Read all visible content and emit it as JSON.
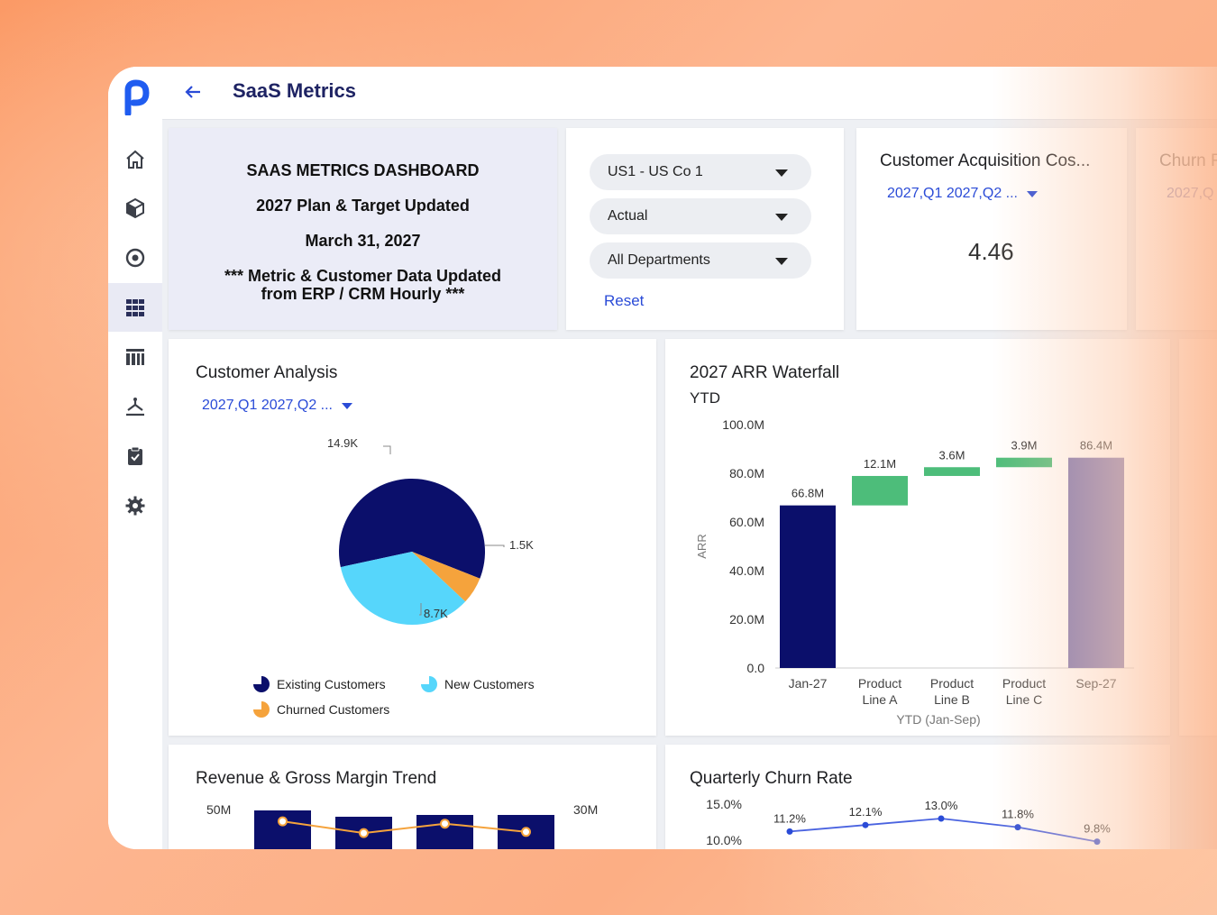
{
  "header": {
    "title": "SaaS Metrics"
  },
  "sidebar": {
    "items": [
      "home-icon",
      "cube-icon",
      "target-icon",
      "grid-icon",
      "building-icon",
      "hierarchy-icon",
      "clipboard-icon",
      "gear-icon"
    ],
    "active": 3
  },
  "banner": {
    "line1": "SAAS METRICS DASHBOARD",
    "line2": "2027 Plan & Target Updated",
    "line3": "March 31, 2027",
    "line4": "*** Metric & Customer Data Updated",
    "line5": "from ERP / CRM Hourly ***"
  },
  "filters": {
    "entity": "US1 - US Co 1",
    "scenario": "Actual",
    "department": "All Departments",
    "reset": "Reset"
  },
  "cac": {
    "title": "Customer Acquisition Cos...",
    "filter": "2027,Q1 2027,Q2 ...",
    "value": "4.46"
  },
  "churn_card": {
    "title": "Churn R",
    "filter": "2027,Q"
  },
  "customer_analysis": {
    "title": "Customer Analysis",
    "filter": "2027,Q1 2027,Q2 ...",
    "legend": [
      "Existing Customers",
      "New Customers",
      "Churned Customers"
    ],
    "chart_data": {
      "type": "pie",
      "labels": [
        "Existing Customers",
        "New Customers",
        "Churned Customers"
      ],
      "values": [
        14.9,
        8.7,
        1.5
      ],
      "value_labels": [
        "14.9K",
        "8.7K",
        "1.5K"
      ],
      "colors": [
        "#0b0f6b",
        "#56d6fb",
        "#f5a33c"
      ]
    }
  },
  "arr": {
    "title": "2027 ARR Waterfall",
    "subtitle": "YTD",
    "chart_data": {
      "type": "bar",
      "categories": [
        "Jan-27",
        "Product Line A",
        "Product Line B",
        "Product Line C",
        "Sep-27"
      ],
      "base": [
        0,
        66.8,
        78.9,
        82.5,
        0
      ],
      "values": [
        66.8,
        12.1,
        3.6,
        3.9,
        86.4
      ],
      "value_labels": [
        "66.8M",
        "12.1M",
        "3.6M",
        "3.9M",
        "86.4M"
      ],
      "colors": [
        "#0b0f6b",
        "#4dbd7a",
        "#4dbd7a",
        "#4dbd7a",
        "#7a74b0"
      ],
      "ylabel": "ARR",
      "xlabel": "YTD (Jan-Sep)",
      "yticks": [
        "100.0M",
        "80.0M",
        "60.0M",
        "40.0M",
        "20.0M",
        "0.0"
      ],
      "ylim": [
        0,
        100
      ]
    }
  },
  "revenue": {
    "title": "Revenue & Gross Margin Trend",
    "chart_data": {
      "type": "bar",
      "left_tick": "50M",
      "right_tick": "30M",
      "bar_count": 4,
      "line": [
        0.35,
        0.85,
        0.45,
        0.8
      ]
    }
  },
  "churn_rate": {
    "title": "Quarterly Churn Rate",
    "chart_data": {
      "type": "line",
      "values": [
        11.2,
        12.1,
        13.0,
        11.8,
        9.8
      ],
      "value_labels": [
        "11.2%",
        "12.1%",
        "13.0%",
        "11.8%",
        "9.8%"
      ],
      "yticks": [
        "15.0%",
        "10.0%"
      ],
      "ylim": [
        10,
        15
      ]
    }
  }
}
